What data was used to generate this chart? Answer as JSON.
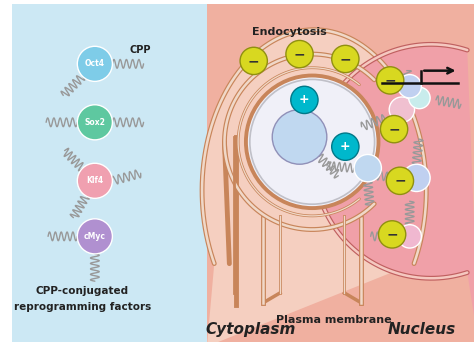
{
  "bg_left_color": "#cce8f4",
  "bg_right_color": "#f0a898",
  "cell_fill": "#f5cfc0",
  "cell_inner_fill": "#fae8e0",
  "cell_edge": "#c8855a",
  "cell_inner_edge": "#d4a080",
  "nucleus_fill": "#f0a0a8",
  "nucleus_edge": "#c06060",
  "endosome_fill": "#f0f0f8",
  "endosome_edge": "#b0b0c0",
  "plasma_membrane_label": "Plasma membrane",
  "endocytosis_label": "Endocytosis",
  "cytoplasm_label": "Cytoplasm",
  "nucleus_label": "Nucleus",
  "cpp_label": "CPP",
  "bottom_label_line1": "CPP-conjugated",
  "bottom_label_line2": "reprogramming factors",
  "factors": [
    {
      "label": "Oct4",
      "color": "#7ecce8"
    },
    {
      "label": "Sox2",
      "color": "#5ec8a0"
    },
    {
      "label": "Klf4",
      "color": "#f0a0b0"
    },
    {
      "label": "cMyc",
      "color": "#b090d0"
    }
  ],
  "plus_fill": "#00b8cc",
  "plus_edge": "#007888",
  "plus_text": "#ffffff",
  "minus_fill": "#d8d820",
  "minus_edge": "#909010",
  "minus_text": "#333333",
  "coil_color": "#999999",
  "arrow_color": "#111111",
  "label_color": "#222222",
  "coil_lw": 1.0,
  "prot_ball_color": "#c0d8f0",
  "prot_ball_edge": "#8090b0",
  "nuc_ball1_color": "#c0d0f0",
  "nuc_ball2_color": "#c8ecec",
  "nuc_ball3_color": "#f0c0d8",
  "nuc_top_ball_color": "#c0b8e8",
  "nuc_top_ball2_color": "#f0b8d0"
}
